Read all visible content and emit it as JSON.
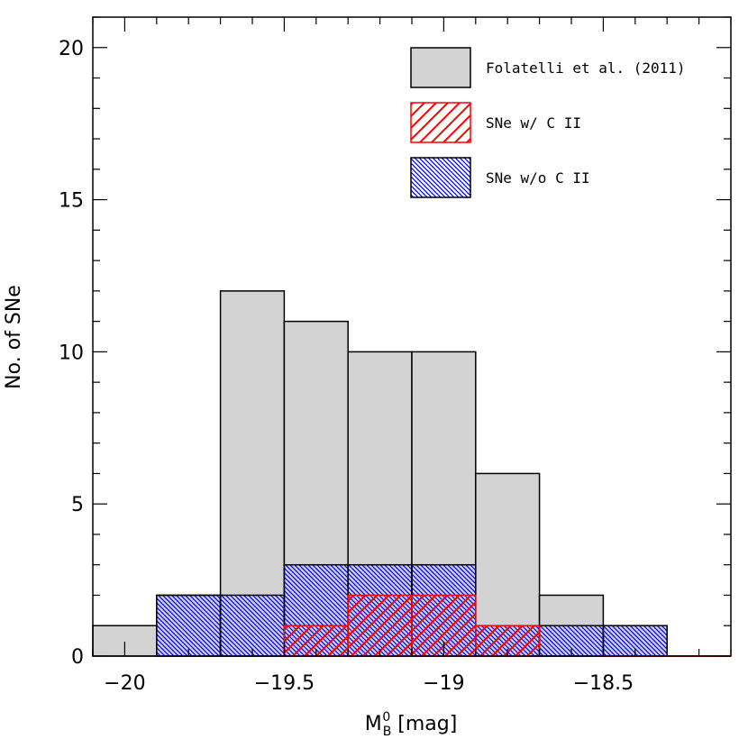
{
  "chart_data": {
    "type": "bar",
    "xlabel": "[mag]",
    "xlabel_symbol": {
      "main": "M",
      "sub": "B",
      "sup": "0"
    },
    "ylabel": "No. of SNe",
    "xlim": [
      -20.1,
      -18.1
    ],
    "ylim": [
      0,
      21
    ],
    "grid": false,
    "legend_position": "top-right",
    "x_ticks": [
      {
        "value": -20,
        "label": "−20"
      },
      {
        "value": -19.5,
        "label": "−19.5"
      },
      {
        "value": -19,
        "label": "−19"
      },
      {
        "value": -18.5,
        "label": "−18.5"
      }
    ],
    "y_ticks": [
      {
        "value": 0,
        "label": "0"
      },
      {
        "value": 5,
        "label": "5"
      },
      {
        "value": 10,
        "label": "10"
      },
      {
        "value": 15,
        "label": "15"
      },
      {
        "value": 20,
        "label": "20"
      }
    ],
    "bin_edges": [
      -20.1,
      -19.9,
      -19.7,
      -19.5,
      -19.3,
      -19.1,
      -18.9,
      -18.7,
      -18.5,
      -18.3,
      -18.1
    ],
    "series": [
      {
        "name": "Folatelli et al. (2011)",
        "style": "fill",
        "fill_color": "#d3d3d3",
        "stroke_color": "#000000",
        "values": [
          1,
          2,
          12,
          11,
          10,
          10,
          6,
          2,
          1,
          0
        ]
      },
      {
        "name": "SNe w/o C II",
        "style": "hatch-back",
        "fill_color": "#0000ff",
        "stroke_color": "#000000",
        "values": [
          0,
          2,
          2,
          3,
          3,
          3,
          1,
          1,
          1,
          0
        ]
      },
      {
        "name": "SNe w/ C II",
        "style": "hatch-fwd",
        "fill_color": "#ff0000",
        "stroke_color": "#ff0000",
        "values": [
          0,
          0,
          0,
          1,
          2,
          2,
          1,
          0,
          0,
          0
        ]
      }
    ],
    "legend": [
      {
        "label": "Folatelli et al. (2011)",
        "style": "fill"
      },
      {
        "label": "SNe w/ C II",
        "style": "hatch-fwd"
      },
      {
        "label": "SNe w/o C II",
        "style": "hatch-back"
      }
    ]
  }
}
